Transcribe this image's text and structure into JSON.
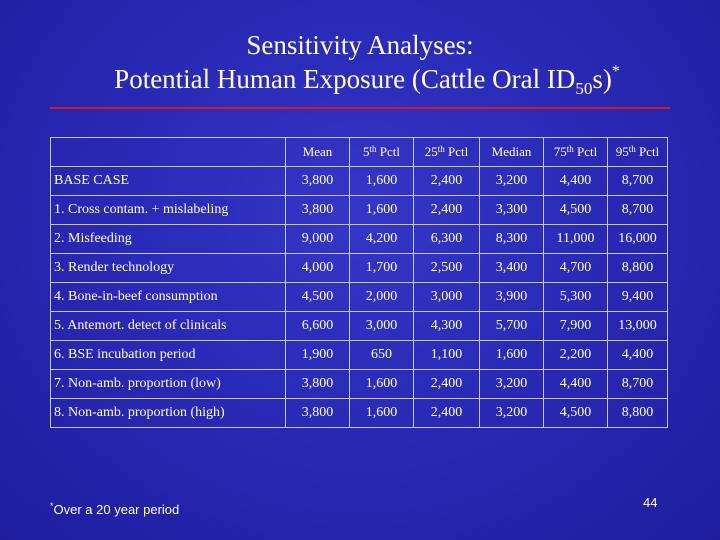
{
  "title": {
    "line1": "Sensitivity Analyses:",
    "line2_prefix": "Potential Human Exposure (Cattle Oral ID",
    "line2_sub": "50",
    "line2_suffix": "s)",
    "line2_sup": "*"
  },
  "table": {
    "headers": [
      {
        "pre": "Mean",
        "sup": "",
        "post": ""
      },
      {
        "pre": "5",
        "sup": "th",
        "post": " Pctl"
      },
      {
        "pre": "25",
        "sup": "th",
        "post": " Pctl"
      },
      {
        "pre": "Median",
        "sup": "",
        "post": ""
      },
      {
        "pre": "75",
        "sup": "th",
        "post": " Pctl"
      },
      {
        "pre": "95",
        "sup": "th",
        "post": " Pctl"
      }
    ],
    "rows": [
      {
        "label": "BASE CASE",
        "values": [
          "3,800",
          "1,600",
          "2,400",
          "3,200",
          "4,400",
          "8,700"
        ]
      },
      {
        "label": "1.  Cross contam. + mislabeling",
        "values": [
          "3,800",
          "1,600",
          "2,400",
          "3,300",
          "4,500",
          "8,700"
        ]
      },
      {
        "label": "2.  Misfeeding",
        "values": [
          "9,000",
          "4,200",
          "6,300",
          "8,300",
          "11,000",
          "16,000"
        ]
      },
      {
        "label": "3.  Render technology",
        "values": [
          "4,000",
          "1,700",
          "2,500",
          "3,400",
          "4,700",
          "8,800"
        ]
      },
      {
        "label": "4.  Bone-in-beef consumption",
        "values": [
          "4,500",
          "2,000",
          "3,000",
          "3,900",
          "5,300",
          "9,400"
        ]
      },
      {
        "label": "5.  Antemort. detect of clinicals",
        "values": [
          "6,600",
          "3,000",
          "4,300",
          "5,700",
          "7,900",
          "13,000"
        ]
      },
      {
        "label": "6.  BSE incubation period",
        "values": [
          "1,900",
          "650",
          "1,100",
          "1,600",
          "2,200",
          "4,400"
        ]
      },
      {
        "label": "7.  Non-amb. proportion (low)",
        "values": [
          "3,800",
          "1,600",
          "2,400",
          "3,200",
          "4,400",
          "8,700"
        ]
      },
      {
        "label": "8.  Non-amb. proportion (high)",
        "values": [
          "3,800",
          "1,600",
          "2,400",
          "3,200",
          "4,500",
          "8,800"
        ]
      }
    ]
  },
  "footnote": {
    "mark": "*",
    "text": "Over a 20 year period"
  },
  "page_number": "44",
  "colors": {
    "background": "#2a2ab8",
    "rule": "#d41a1a",
    "text": "#ffffff"
  }
}
